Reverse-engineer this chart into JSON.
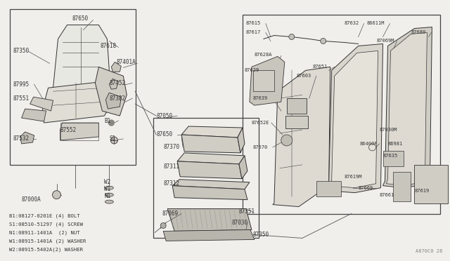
{
  "bg_color": "#f0efeb",
  "border_color": "#555555",
  "line_color": "#333333",
  "text_color": "#333333",
  "fig_width": 6.4,
  "fig_height": 3.72,
  "watermark": "A870C0 28",
  "legend_lines": [
    "B1:08127-0201E (4) BOLT",
    "S1:08510-51297 (4) SCREW",
    "N1:08911-1401A  (2) NUT",
    "W1:08915-1401A (2) WASHER",
    "W2:08915-5402A(2) WASHER"
  ]
}
